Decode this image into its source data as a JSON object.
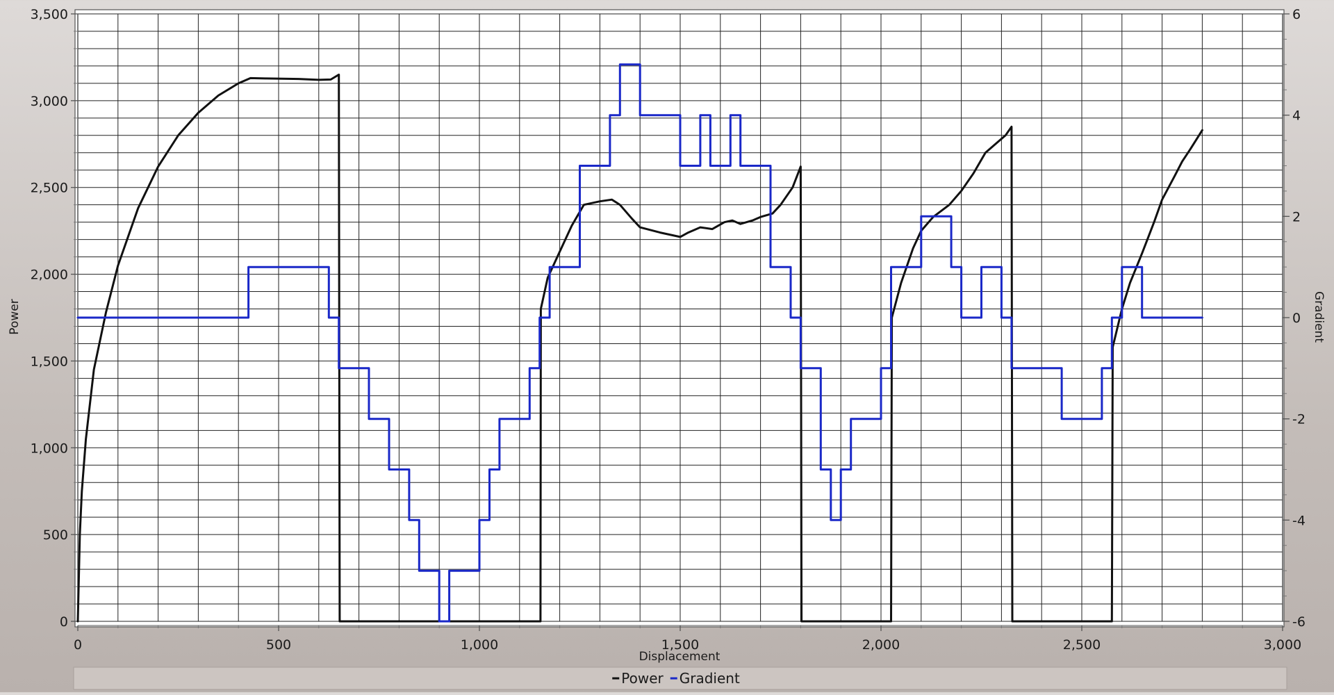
{
  "chart_data": {
    "type": "line",
    "title": "",
    "xlabel": "Displacement",
    "ylabel": "Power",
    "y2label": "Gradient",
    "xlim": [
      0,
      3000
    ],
    "ylim": [
      0,
      3500
    ],
    "y2lim": [
      -6,
      6
    ],
    "grid": true,
    "legend_position": "bottom",
    "x_ticks": [
      {
        "value": 0,
        "label": "0"
      },
      {
        "value": 500,
        "label": "500"
      },
      {
        "value": 1000,
        "label": "1,000"
      },
      {
        "value": 1500,
        "label": "1,500"
      },
      {
        "value": 2000,
        "label": "2,000"
      },
      {
        "value": 2500,
        "label": "2,500"
      },
      {
        "value": 3000,
        "label": "3,000"
      }
    ],
    "y_ticks": [
      {
        "value": 0,
        "label": "0"
      },
      {
        "value": 500,
        "label": "500"
      },
      {
        "value": 1000,
        "label": "1,000"
      },
      {
        "value": 1500,
        "label": "1,500"
      },
      {
        "value": 2000,
        "label": "2,000"
      },
      {
        "value": 2500,
        "label": "2,500"
      },
      {
        "value": 3000,
        "label": "3,000"
      },
      {
        "value": 3500,
        "label": "3,500"
      }
    ],
    "y2_ticks": [
      {
        "value": -6,
        "label": "-6"
      },
      {
        "value": -4,
        "label": "-4"
      },
      {
        "value": -2,
        "label": "-2"
      },
      {
        "value": 0,
        "label": "0"
      },
      {
        "value": 2,
        "label": "2"
      },
      {
        "value": 4,
        "label": "4"
      },
      {
        "value": 6,
        "label": "6"
      }
    ],
    "series": [
      {
        "name": "Power",
        "axis": "left",
        "color": "#111111",
        "points": [
          [
            0,
            0
          ],
          [
            5,
            500
          ],
          [
            10,
            750
          ],
          [
            20,
            1050
          ],
          [
            40,
            1450
          ],
          [
            70,
            1780
          ],
          [
            100,
            2050
          ],
          [
            150,
            2380
          ],
          [
            200,
            2620
          ],
          [
            250,
            2800
          ],
          [
            300,
            2930
          ],
          [
            350,
            3030
          ],
          [
            400,
            3100
          ],
          [
            430,
            3130
          ],
          [
            470,
            3128
          ],
          [
            550,
            3125
          ],
          [
            600,
            3120
          ],
          [
            630,
            3122
          ],
          [
            650,
            3150
          ],
          [
            652,
            0
          ],
          [
            1152,
            0
          ],
          [
            1153,
            1800
          ],
          [
            1170,
            1980
          ],
          [
            1200,
            2130
          ],
          [
            1230,
            2280
          ],
          [
            1260,
            2400
          ],
          [
            1300,
            2420
          ],
          [
            1330,
            2430
          ],
          [
            1350,
            2400
          ],
          [
            1380,
            2320
          ],
          [
            1400,
            2270
          ],
          [
            1450,
            2240
          ],
          [
            1500,
            2215
          ],
          [
            1520,
            2240
          ],
          [
            1550,
            2270
          ],
          [
            1580,
            2260
          ],
          [
            1610,
            2300
          ],
          [
            1630,
            2310
          ],
          [
            1650,
            2290
          ],
          [
            1680,
            2310
          ],
          [
            1700,
            2330
          ],
          [
            1730,
            2350
          ],
          [
            1750,
            2400
          ],
          [
            1780,
            2500
          ],
          [
            1800,
            2620
          ],
          [
            1802,
            0
          ],
          [
            2025,
            0
          ],
          [
            2027,
            1750
          ],
          [
            2050,
            1950
          ],
          [
            2080,
            2150
          ],
          [
            2100,
            2250
          ],
          [
            2130,
            2330
          ],
          [
            2170,
            2400
          ],
          [
            2200,
            2480
          ],
          [
            2230,
            2580
          ],
          [
            2260,
            2700
          ],
          [
            2290,
            2760
          ],
          [
            2310,
            2800
          ],
          [
            2325,
            2850
          ],
          [
            2327,
            0
          ],
          [
            2575,
            0
          ],
          [
            2577,
            1580
          ],
          [
            2600,
            1800
          ],
          [
            2620,
            1950
          ],
          [
            2650,
            2120
          ],
          [
            2680,
            2300
          ],
          [
            2700,
            2430
          ],
          [
            2730,
            2560
          ],
          [
            2750,
            2650
          ],
          [
            2770,
            2720
          ],
          [
            2800,
            2830
          ]
        ]
      },
      {
        "name": "Gradient",
        "axis": "right",
        "color": "#1a28c8",
        "points": [
          [
            0,
            0
          ],
          [
            425,
            0
          ],
          [
            425,
            1
          ],
          [
            625,
            1
          ],
          [
            625,
            0
          ],
          [
            650,
            0
          ],
          [
            650,
            -1
          ],
          [
            725,
            -1
          ],
          [
            725,
            -2
          ],
          [
            775,
            -2
          ],
          [
            775,
            -3
          ],
          [
            825,
            -3
          ],
          [
            825,
            -4
          ],
          [
            850,
            -4
          ],
          [
            850,
            -5
          ],
          [
            900,
            -5
          ],
          [
            900,
            -6
          ],
          [
            925,
            -6
          ],
          [
            925,
            -5
          ],
          [
            1000,
            -5
          ],
          [
            1000,
            -4
          ],
          [
            1025,
            -4
          ],
          [
            1025,
            -3
          ],
          [
            1050,
            -3
          ],
          [
            1050,
            -2
          ],
          [
            1125,
            -2
          ],
          [
            1125,
            -1
          ],
          [
            1150,
            -1
          ],
          [
            1150,
            0
          ],
          [
            1175,
            0
          ],
          [
            1175,
            1
          ],
          [
            1250,
            1
          ],
          [
            1250,
            3
          ],
          [
            1325,
            3
          ],
          [
            1325,
            4
          ],
          [
            1350,
            4
          ],
          [
            1350,
            5
          ],
          [
            1400,
            5
          ],
          [
            1400,
            4
          ],
          [
            1500,
            4
          ],
          [
            1500,
            3
          ],
          [
            1550,
            3
          ],
          [
            1550,
            4
          ],
          [
            1575,
            4
          ],
          [
            1575,
            3
          ],
          [
            1625,
            3
          ],
          [
            1625,
            4
          ],
          [
            1650,
            4
          ],
          [
            1650,
            3
          ],
          [
            1725,
            3
          ],
          [
            1725,
            1
          ],
          [
            1775,
            1
          ],
          [
            1775,
            0
          ],
          [
            1800,
            0
          ],
          [
            1800,
            -1
          ],
          [
            1850,
            -1
          ],
          [
            1850,
            -3
          ],
          [
            1875,
            -3
          ],
          [
            1875,
            -4
          ],
          [
            1900,
            -4
          ],
          [
            1900,
            -3
          ],
          [
            1925,
            -3
          ],
          [
            1925,
            -2
          ],
          [
            2000,
            -2
          ],
          [
            2000,
            -1
          ],
          [
            2025,
            -1
          ],
          [
            2025,
            1
          ],
          [
            2100,
            1
          ],
          [
            2100,
            2
          ],
          [
            2175,
            2
          ],
          [
            2175,
            1
          ],
          [
            2200,
            1
          ],
          [
            2200,
            0
          ],
          [
            2250,
            0
          ],
          [
            2250,
            1
          ],
          [
            2300,
            1
          ],
          [
            2300,
            0
          ],
          [
            2325,
            0
          ],
          [
            2325,
            -1
          ],
          [
            2450,
            -1
          ],
          [
            2450,
            -2
          ],
          [
            2550,
            -2
          ],
          [
            2550,
            -1
          ],
          [
            2575,
            -1
          ],
          [
            2575,
            0
          ],
          [
            2600,
            0
          ],
          [
            2600,
            1
          ],
          [
            2650,
            1
          ],
          [
            2650,
            0
          ],
          [
            2800,
            0
          ]
        ]
      }
    ]
  }
}
